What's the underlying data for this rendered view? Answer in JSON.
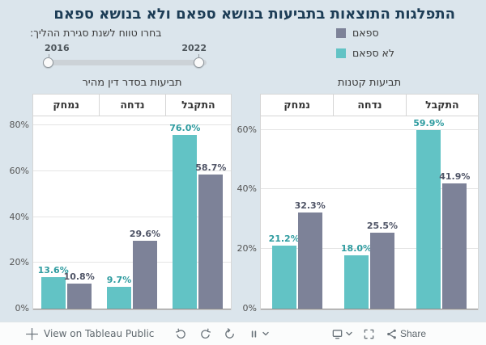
{
  "title": "התפלגות התוצאות בתביעות בנושא ספאם ולא בנושא ספאם",
  "filter": {
    "label": "בחרו טווח לשנת סגירת ההליך:",
    "min_year": "2016",
    "max_year": "2022"
  },
  "legend": {
    "items": [
      {
        "key": "spam",
        "label": "ספאם",
        "color": "#7d8298"
      },
      {
        "key": "not-spam",
        "label": "לא ספאם",
        "color": "#62c3c5"
      }
    ]
  },
  "chart_data": [
    {
      "type": "bar",
      "title": "תביעות בסדר דין מהיר",
      "categories": [
        "נמחק",
        "נדחה",
        "התקבל"
      ],
      "series": [
        {
          "key": "not-spam",
          "name": "לא ספאם",
          "color": "#62c3c5",
          "label_color": "#2f9ca0",
          "values": [
            13.6,
            9.7,
            76.0
          ]
        },
        {
          "key": "spam",
          "name": "ספאם",
          "color": "#7d8298",
          "label_color": "#4f5466",
          "values": [
            10.8,
            29.6,
            58.7
          ]
        }
      ],
      "yticks": [
        0,
        20,
        40,
        60,
        80
      ],
      "ylim": [
        0,
        84
      ],
      "value_suffix": "%",
      "grid": true,
      "legend_position": "top-right"
    },
    {
      "type": "bar",
      "title": "תביעות קטנות",
      "categories": [
        "נמחק",
        "נדחה",
        "התקבל"
      ],
      "series": [
        {
          "key": "not-spam",
          "name": "לא ספאם",
          "color": "#62c3c5",
          "label_color": "#2f9ca0",
          "values": [
            21.2,
            18.0,
            59.9
          ]
        },
        {
          "key": "spam",
          "name": "ספאם",
          "color": "#7d8298",
          "label_color": "#4f5466",
          "values": [
            32.3,
            25.5,
            41.9
          ]
        }
      ],
      "yticks": [
        0,
        20,
        40,
        60
      ],
      "ylim": [
        0,
        64.5
      ],
      "value_suffix": "%",
      "grid": true,
      "legend_position": "top-right"
    }
  ],
  "toolbar": {
    "view_label": "View on Tableau Public",
    "share_label": "Share"
  },
  "colors": {
    "background": "#dbe5ec",
    "title": "#1d3d56",
    "chart_background": "#ffffff",
    "gridline": "#e4e4e4",
    "axis_line": "#8c8c8c",
    "bar_teal": "#62c3c5",
    "bar_gray": "#7d8298"
  }
}
